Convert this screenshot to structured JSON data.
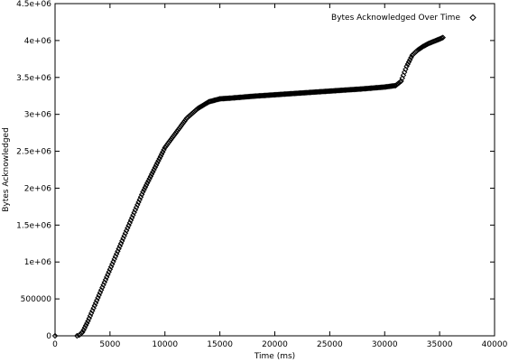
{
  "chart_data": {
    "type": "scatter",
    "title": "",
    "xlabel": "Time (ms)",
    "ylabel": "Bytes Acknowledged",
    "xlim": [
      0,
      40000
    ],
    "ylim": [
      0,
      4500000
    ],
    "xticks": [
      0,
      5000,
      10000,
      15000,
      20000,
      25000,
      30000,
      35000,
      40000
    ],
    "xtick_labels": [
      "0",
      "5000",
      "10000",
      "15000",
      "20000",
      "25000",
      "30000",
      "35000",
      "40000"
    ],
    "yticks": [
      0,
      500000,
      1000000,
      1500000,
      2000000,
      2500000,
      3000000,
      3500000,
      4000000,
      4500000
    ],
    "ytick_labels": [
      "0",
      "500000",
      "1e+06",
      "1.5e+06",
      "2e+06",
      "2.5e+06",
      "3e+06",
      "3.5e+06",
      "4e+06",
      "4.5e+06"
    ],
    "grid": false,
    "legend_position": "top-right",
    "marker": "diamond",
    "series": [
      {
        "name": "Bytes Acknowledged Over Time",
        "x": [
          0,
          2000,
          2200,
          2500,
          3000,
          4000,
          5000,
          6000,
          7000,
          8000,
          9000,
          10000,
          11000,
          12000,
          13000,
          14000,
          15000,
          16000,
          18000,
          20000,
          22000,
          24000,
          26000,
          28000,
          30000,
          31000,
          31500,
          32000,
          32500,
          33000,
          33500,
          34000,
          34500,
          35000,
          35300
        ],
        "y": [
          0,
          0,
          10000,
          50000,
          200000,
          550000,
          900000,
          1250000,
          1600000,
          1950000,
          2250000,
          2550000,
          2750000,
          2950000,
          3080000,
          3170000,
          3210000,
          3220000,
          3245000,
          3265000,
          3285000,
          3305000,
          3325000,
          3345000,
          3370000,
          3390000,
          3450000,
          3650000,
          3800000,
          3870000,
          3920000,
          3960000,
          3990000,
          4020000,
          4040000
        ]
      }
    ]
  }
}
